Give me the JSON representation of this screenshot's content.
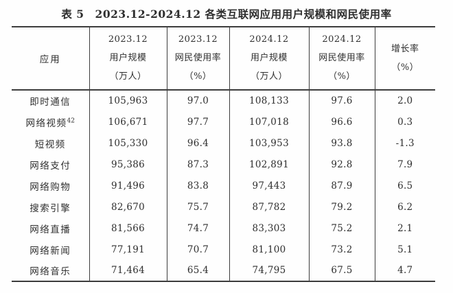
{
  "title": "表 5　2023.12-2024.12 各类互联网应用用户规模和网民使用率",
  "table": {
    "header": {
      "app": "应用",
      "col1": {
        "period": "2023.12",
        "metric": "用户规模",
        "unit": "（万人）"
      },
      "col2": {
        "period": "2023.12",
        "metric": "网民使用率",
        "unit": "（%）"
      },
      "col3": {
        "period": "2024.12",
        "metric": "用户规模",
        "unit": "（万人）"
      },
      "col4": {
        "period": "2024.12",
        "metric": "网民使用率",
        "unit": "（%）"
      },
      "growth": {
        "line1": "增长率",
        "line2": "（%）"
      }
    },
    "rows": [
      {
        "app": "即时通信",
        "scale_2023": "105,963",
        "rate_2023": "97.0",
        "scale_2024": "108,133",
        "rate_2024": "97.6",
        "growth": "2.0"
      },
      {
        "app": "网络视频",
        "footnote": "42",
        "scale_2023": "106,671",
        "rate_2023": "97.7",
        "scale_2024": "107,018",
        "rate_2024": "96.6",
        "growth": "0.3"
      },
      {
        "app": "短视频",
        "scale_2023": "105,330",
        "rate_2023": "96.4",
        "scale_2024": "103,953",
        "rate_2024": "93.8",
        "growth": "-1.3"
      },
      {
        "app": "网络支付",
        "scale_2023": "95,386",
        "rate_2023": "87.3",
        "scale_2024": "102,891",
        "rate_2024": "92.8",
        "growth": "7.9"
      },
      {
        "app": "网络购物",
        "scale_2023": "91,496",
        "rate_2023": "83.8",
        "scale_2024": "97,443",
        "rate_2024": "87.9",
        "growth": "6.5"
      },
      {
        "app": "搜索引擎",
        "scale_2023": "82,670",
        "rate_2023": "75.7",
        "scale_2024": "87,782",
        "rate_2024": "79.2",
        "growth": "6.2"
      },
      {
        "app": "网络直播",
        "scale_2023": "81,566",
        "rate_2023": "74.7",
        "scale_2024": "83,303",
        "rate_2024": "75.2",
        "growth": "2.1"
      },
      {
        "app": "网络新闻",
        "scale_2023": "77,191",
        "rate_2023": "70.7",
        "scale_2024": "81,100",
        "rate_2024": "73.2",
        "growth": "5.1"
      },
      {
        "app": "网络音乐",
        "scale_2023": "71,464",
        "rate_2023": "65.4",
        "scale_2024": "74,795",
        "rate_2024": "67.5",
        "growth": "4.7"
      }
    ]
  }
}
